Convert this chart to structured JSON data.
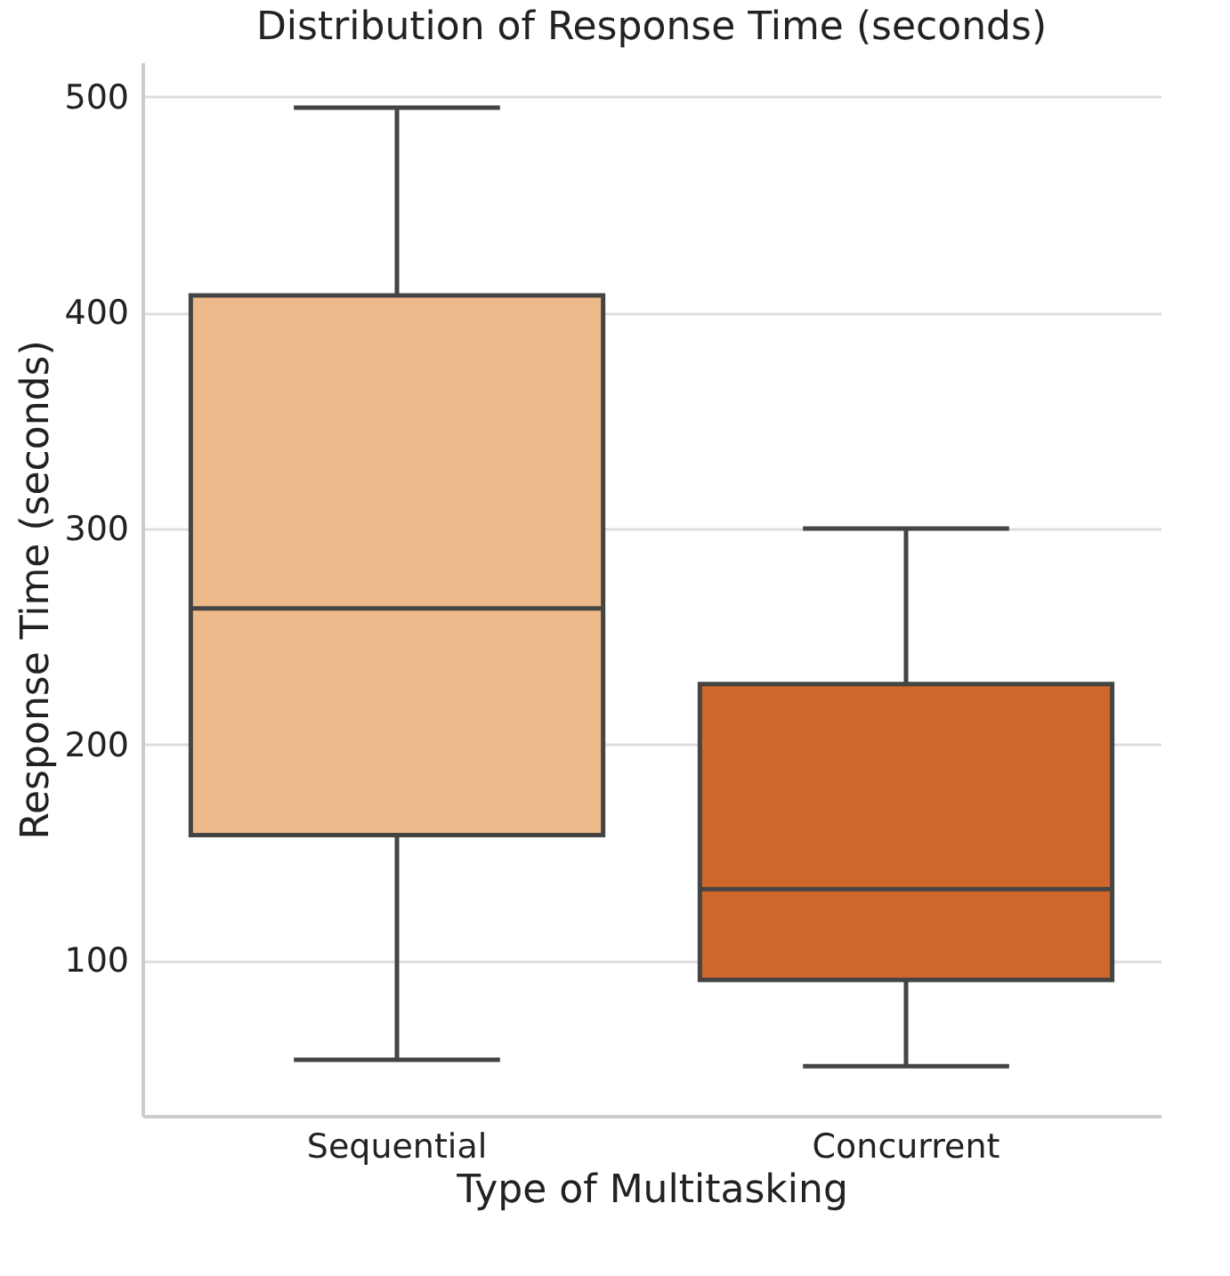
{
  "chart_data": {
    "type": "box",
    "title": "Distribution of Response Time (seconds)",
    "xlabel": "Type of Multitasking",
    "ylabel": "Response Time (seconds)",
    "categories": [
      "Sequential",
      "Concurrent"
    ],
    "colors": [
      "#edb98a",
      "#d0672a"
    ],
    "boxes": [
      {
        "low": 54,
        "q1": 158,
        "median": 263,
        "q3": 408,
        "high": 495
      },
      {
        "low": 51,
        "q1": 91,
        "median": 133,
        "q3": 228,
        "high": 300
      }
    ],
    "ylim": [
      28,
      516
    ],
    "yticks": [
      100,
      200,
      300,
      400,
      500
    ],
    "grid": "y",
    "legend": false
  }
}
